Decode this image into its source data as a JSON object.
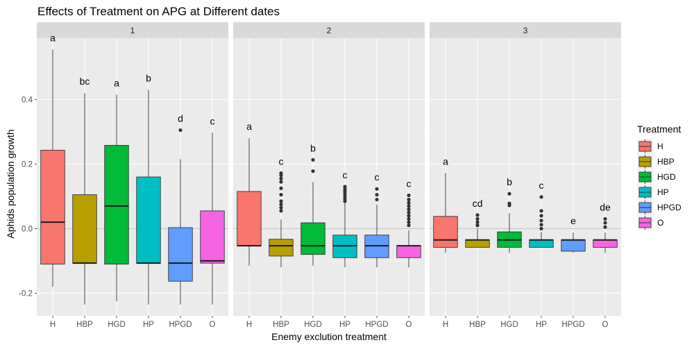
{
  "chart_data": {
    "type": "boxplot",
    "title": "Effects of Treatment on APG at Different dates",
    "xlabel": "Enemy exclution treatment",
    "ylabel": "Aphids population growth",
    "categories": [
      "H",
      "HBP",
      "HGD",
      "HP",
      "HPGD",
      "O"
    ],
    "ylim": [
      -0.27,
      0.59
    ],
    "yticks": [
      -0.2,
      0.0,
      0.2,
      0.4
    ],
    "ytick_labels": [
      "-0.2",
      "0.0",
      "0.2",
      "0.4"
    ],
    "grid": true,
    "legend": {
      "title": "Treatment",
      "position": "right",
      "items": [
        {
          "label": "H",
          "color": "#F8766D"
        },
        {
          "label": "HBP",
          "color": "#B79F00"
        },
        {
          "label": "HGD",
          "color": "#00BA38"
        },
        {
          "label": "HP",
          "color": "#00BFC4"
        },
        {
          "label": "HPGD",
          "color": "#619CFF"
        },
        {
          "label": "O",
          "color": "#F564E3"
        }
      ]
    },
    "panels": [
      {
        "strip": "1",
        "boxes": [
          {
            "cat": "H",
            "whisker_low": -0.18,
            "q1": -0.11,
            "median": 0.02,
            "q3": 0.243,
            "whisker_high": 0.555,
            "outliers": [],
            "label": "a"
          },
          {
            "cat": "HBP",
            "whisker_low": -0.235,
            "q1": -0.107,
            "median": -0.107,
            "q3": 0.105,
            "whisker_high": 0.42,
            "outliers": [],
            "label": "bc"
          },
          {
            "cat": "HGD",
            "whisker_low": -0.225,
            "q1": -0.11,
            "median": 0.07,
            "q3": 0.258,
            "whisker_high": 0.415,
            "outliers": [],
            "label": "a"
          },
          {
            "cat": "HP",
            "whisker_low": -0.235,
            "q1": -0.107,
            "median": -0.107,
            "q3": 0.16,
            "whisker_high": 0.43,
            "outliers": [],
            "label": "b"
          },
          {
            "cat": "HPGD",
            "whisker_low": -0.235,
            "q1": -0.163,
            "median": -0.107,
            "q3": 0.003,
            "whisker_high": 0.215,
            "outliers": [
              0.305
            ],
            "label": "d"
          },
          {
            "cat": "O",
            "whisker_low": -0.235,
            "q1": -0.107,
            "median": -0.1,
            "q3": 0.055,
            "whisker_high": 0.297,
            "outliers": [],
            "label": "c"
          }
        ]
      },
      {
        "strip": "2",
        "boxes": [
          {
            "cat": "H",
            "whisker_low": -0.115,
            "q1": -0.053,
            "median": -0.053,
            "q3": 0.115,
            "whisker_high": 0.28,
            "outliers": [],
            "label": "a"
          },
          {
            "cat": "HBP",
            "whisker_low": -0.12,
            "q1": -0.085,
            "median": -0.053,
            "q3": -0.033,
            "whisker_high": 0.028,
            "outliers": [
              0.055,
              0.065,
              0.075,
              0.085,
              0.105,
              0.125,
              0.145,
              0.155,
              0.165,
              0.172
            ],
            "label": "c"
          },
          {
            "cat": "HGD",
            "whisker_low": -0.115,
            "q1": -0.08,
            "median": -0.053,
            "q3": 0.018,
            "whisker_high": 0.145,
            "outliers": [
              0.178,
              0.213
            ],
            "label": "b"
          },
          {
            "cat": "HP",
            "whisker_low": -0.12,
            "q1": -0.09,
            "median": -0.053,
            "q3": -0.02,
            "whisker_high": 0.08,
            "outliers": [
              0.085,
              0.092,
              0.1,
              0.108,
              0.115,
              0.122,
              0.13
            ],
            "label": "c"
          },
          {
            "cat": "HPGD",
            "whisker_low": -0.12,
            "q1": -0.09,
            "median": -0.053,
            "q3": -0.02,
            "whisker_high": 0.075,
            "outliers": [
              0.09,
              0.105,
              0.123
            ],
            "label": "c"
          },
          {
            "cat": "O",
            "whisker_low": -0.12,
            "q1": -0.09,
            "median": -0.053,
            "q3": -0.053,
            "whisker_high": -0.005,
            "outliers": [
              0.01,
              0.02,
              0.03,
              0.04,
              0.05,
              0.06,
              0.07,
              0.08,
              0.09,
              0.103
            ],
            "label": "c"
          }
        ]
      },
      {
        "strip": "3",
        "boxes": [
          {
            "cat": "H",
            "whisker_low": -0.075,
            "q1": -0.058,
            "median": -0.035,
            "q3": 0.038,
            "whisker_high": 0.172,
            "outliers": [],
            "label": "a"
          },
          {
            "cat": "HBP",
            "whisker_low": -0.058,
            "q1": -0.058,
            "median": -0.035,
            "q3": -0.035,
            "whisker_high": 0.0,
            "outliers": [
              0.01,
              0.02,
              0.03,
              0.042
            ],
            "label": "cd"
          },
          {
            "cat": "HGD",
            "whisker_low": -0.075,
            "q1": -0.058,
            "median": -0.035,
            "q3": -0.01,
            "whisker_high": 0.048,
            "outliers": [
              0.072,
              0.078,
              0.108
            ],
            "label": "b"
          },
          {
            "cat": "HP",
            "whisker_low": -0.058,
            "q1": -0.058,
            "median": -0.035,
            "q3": -0.035,
            "whisker_high": -0.01,
            "outliers": [
              0.0,
              0.012,
              0.025,
              0.04,
              0.055,
              0.098
            ],
            "label": "c"
          },
          {
            "cat": "HPGD",
            "whisker_low": -0.075,
            "q1": -0.07,
            "median": -0.035,
            "q3": -0.035,
            "whisker_high": -0.012,
            "outliers": [],
            "label": "e"
          },
          {
            "cat": "O",
            "whisker_low": -0.075,
            "q1": -0.058,
            "median": -0.035,
            "q3": -0.035,
            "whisker_high": -0.012,
            "outliers": [
              0.005,
              0.018,
              0.03
            ],
            "label": "de"
          }
        ]
      }
    ]
  }
}
